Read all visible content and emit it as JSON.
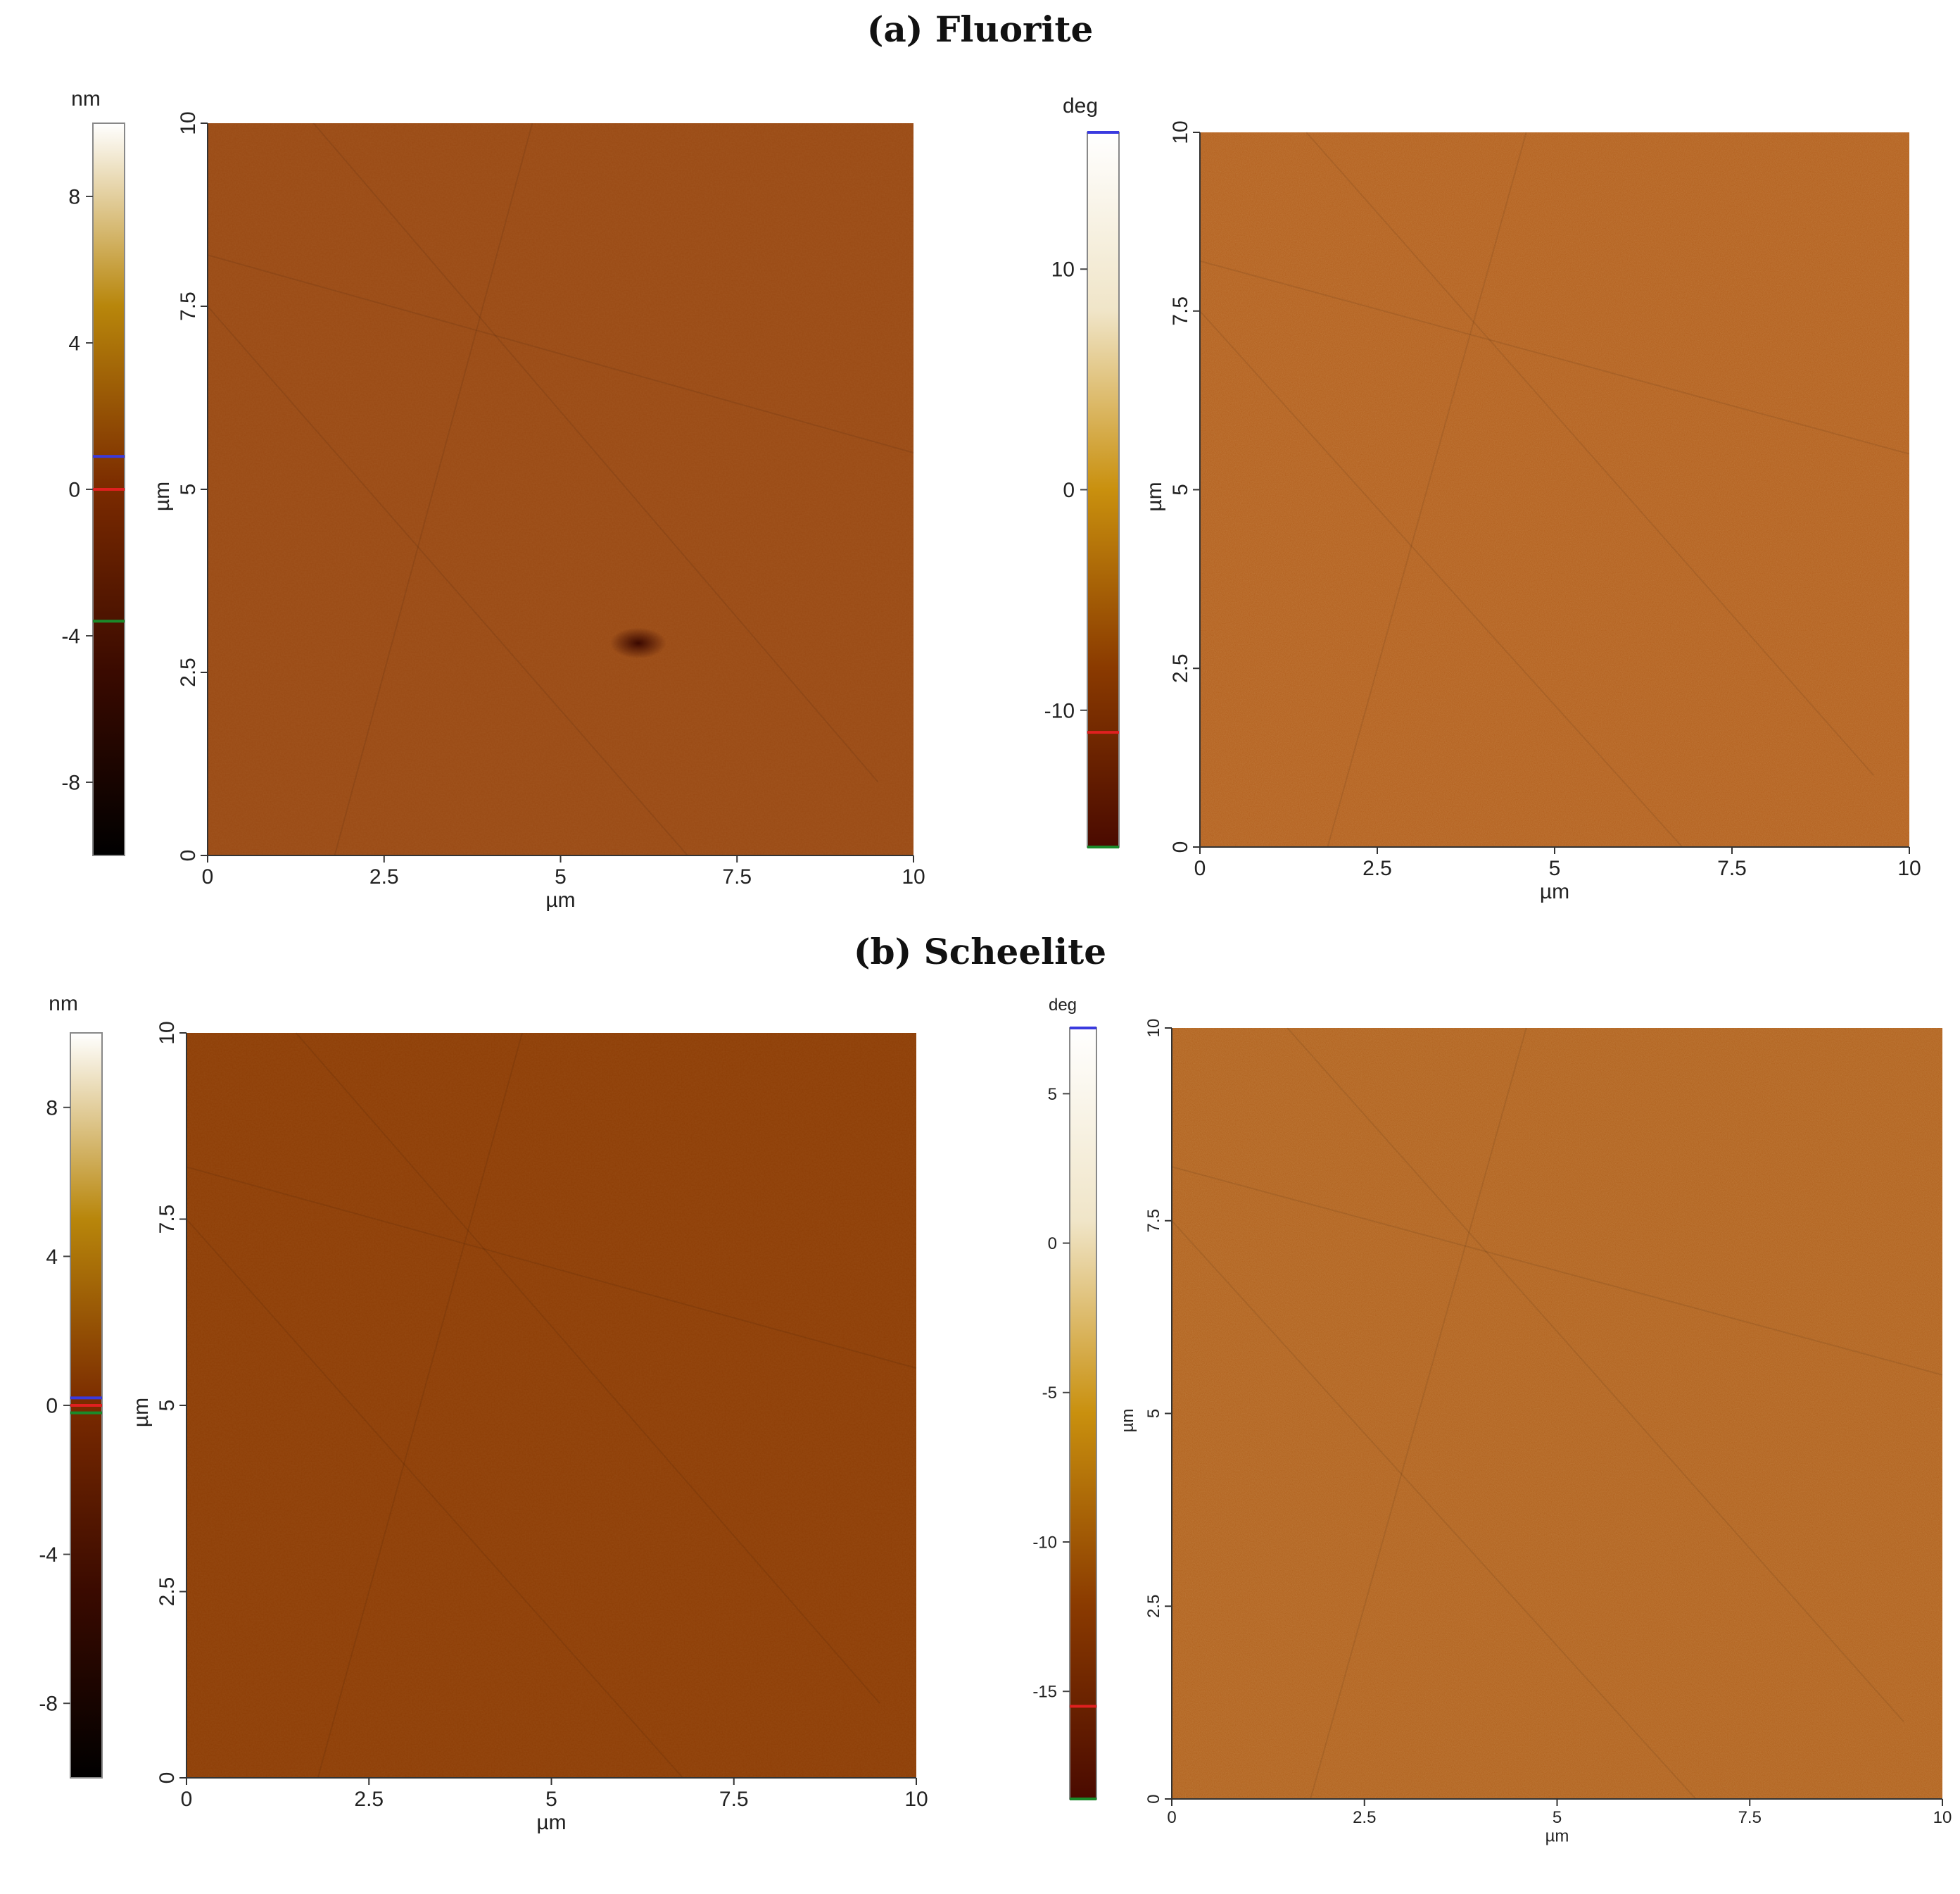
{
  "sections": [
    {
      "letter": "a",
      "name": "Fluorite"
    },
    {
      "letter": "b",
      "name": "Scheelite"
    }
  ],
  "chart_data": [
    {
      "type": "heatmap",
      "section": "a",
      "unit": "nm",
      "xlabel": "µm",
      "ylabel": "µm",
      "xlim": [
        0,
        10
      ],
      "ylim": [
        0,
        10
      ],
      "xticks": [
        "0",
        "2.5",
        "5",
        "7.5",
        "10"
      ],
      "yticks": [
        "0",
        "2.5",
        "5",
        "7.5",
        "10"
      ],
      "colorbar": {
        "range": [
          -10,
          10
        ],
        "ticks": [
          "-8",
          "-4",
          "0",
          "4",
          "8"
        ],
        "markers": {
          "blue": 0.9,
          "red": 0,
          "green": -3.6
        }
      },
      "colormap": [
        "#000000",
        "#3a0a00",
        "#7a2a00",
        "#b8860b",
        "#ffffff"
      ],
      "base_color": "#9a4a14",
      "features": [
        {
          "kind": "dark-pit",
          "x": 6.1,
          "y": 2.9
        }
      ]
    },
    {
      "type": "heatmap",
      "section": "a",
      "unit": "deg",
      "xlabel": "µm",
      "ylabel": "µm",
      "xlim": [
        0,
        10
      ],
      "ylim": [
        0,
        10
      ],
      "xticks": [
        "0",
        "2.5",
        "5",
        "7.5",
        "10"
      ],
      "yticks": [
        "0",
        "2.5",
        "5",
        "7.5",
        "10"
      ],
      "colorbar": {
        "range": [
          -16.2,
          16.2
        ],
        "ticks": [
          "-10",
          "0",
          "10"
        ],
        "markers": {
          "blue": 16.2,
          "red": -11,
          "green": -16.2
        }
      },
      "colormap": [
        "#4a0a00",
        "#8a3a00",
        "#c9900e",
        "#f0e5c8",
        "#ffffff"
      ],
      "base_color": "#b25e1c"
    },
    {
      "type": "heatmap",
      "section": "b",
      "unit": "nm",
      "xlabel": "µm",
      "ylabel": "µm",
      "xlim": [
        0,
        10
      ],
      "ylim": [
        0,
        10
      ],
      "xticks": [
        "0",
        "2.5",
        "5",
        "7.5",
        "10"
      ],
      "yticks": [
        "0",
        "2.5",
        "5",
        "7.5",
        "10"
      ],
      "colorbar": {
        "range": [
          -10,
          10
        ],
        "ticks": [
          "-8",
          "-4",
          "0",
          "4",
          "8"
        ],
        "markers": {
          "blue": 0.2,
          "red": 0,
          "green": -0.2
        }
      },
      "colormap": [
        "#000000",
        "#3a0a00",
        "#7a2a00",
        "#b8860b",
        "#ffffff"
      ],
      "base_color": "#8e3e06"
    },
    {
      "type": "heatmap",
      "section": "b",
      "unit": "deg",
      "xlabel": "µm",
      "ylabel": "µm",
      "xlim": [
        0,
        10
      ],
      "ylim": [
        0,
        10
      ],
      "xticks": [
        "0",
        "2.5",
        "5",
        "7.5",
        "10"
      ],
      "yticks": [
        "0",
        "2.5",
        "5",
        "7.5",
        "10"
      ],
      "colorbar": {
        "range": [
          -18.6,
          7.2
        ],
        "ticks": [
          "-15",
          "-10",
          "-5",
          "0",
          "5"
        ],
        "markers": {
          "blue": 7.2,
          "red": -15.5,
          "green": -18.6
        }
      },
      "colormap": [
        "#4a0a00",
        "#8a3a00",
        "#c9900e",
        "#f0e5c8",
        "#ffffff"
      ],
      "base_color": "#b0601c"
    }
  ]
}
